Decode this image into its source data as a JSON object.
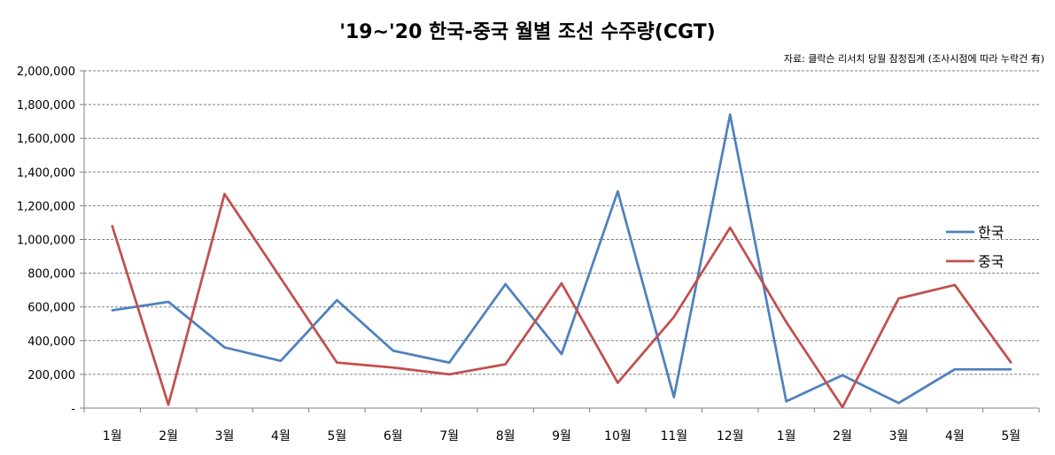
{
  "chart_data": {
    "type": "line",
    "title": "'19~'20 한국-중국 월별 조선 수주량(CGT)",
    "subtitle": "자료: 클락슨 리서치 당월 잠정집계 (조사시점에 따라 누락건 有)",
    "xlabel": "",
    "ylabel": "",
    "categories": [
      "1월",
      "2월",
      "3월",
      "4월",
      "5월",
      "6월",
      "7월",
      "8월",
      "9월",
      "10월",
      "11월",
      "12월",
      "1월",
      "2월",
      "3월",
      "4월",
      "5월"
    ],
    "ylim": [
      0,
      2000000
    ],
    "yticks": [
      0,
      200000,
      400000,
      600000,
      800000,
      1000000,
      1200000,
      1400000,
      1600000,
      1800000,
      2000000
    ],
    "ytick_labels": [
      "-",
      "200,000",
      "400,000",
      "600,000",
      "800,000",
      "1,000,000",
      "1,200,000",
      "1,400,000",
      "1,600,000",
      "1,800,000",
      "2,000,000"
    ],
    "grid": true,
    "legend_position": "right",
    "series": [
      {
        "name": "한국",
        "color": "#4F81BD",
        "values": [
          580000,
          630000,
          360000,
          280000,
          640000,
          340000,
          270000,
          735000,
          320000,
          1285000,
          65000,
          1740000,
          40000,
          195000,
          30000,
          230000,
          230000
        ]
      },
      {
        "name": "중국",
        "color": "#C0504D",
        "values": [
          1080000,
          20000,
          1270000,
          770000,
          270000,
          240000,
          200000,
          260000,
          740000,
          150000,
          540000,
          1070000,
          510000,
          5000,
          650000,
          730000,
          270000
        ]
      }
    ]
  }
}
